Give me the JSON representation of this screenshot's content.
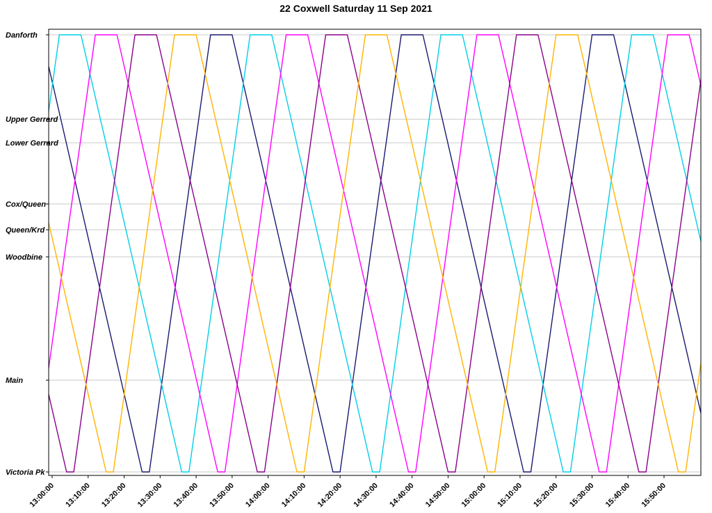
{
  "title": "22 Coxwell Saturday 11 Sep 2021",
  "chart_data": {
    "type": "line",
    "title": "22 Coxwell Saturday 11 Sep 2021",
    "subtitle": "",
    "legend": "none",
    "grid": "horizontal",
    "x_axis": {
      "unit": "time-of-day",
      "start_label": "13:00:00",
      "end_label": "15:50:00",
      "tick_interval_min": 10,
      "range_minutes_after_1300": [
        0,
        180
      ],
      "ticks": [
        {
          "t": 0,
          "label": "13:00:00"
        },
        {
          "t": 10,
          "label": "13:10:00"
        },
        {
          "t": 20,
          "label": "13:20:00"
        },
        {
          "t": 30,
          "label": "13:30:00"
        },
        {
          "t": 40,
          "label": "13:40:00"
        },
        {
          "t": 50,
          "label": "13:50:00"
        },
        {
          "t": 60,
          "label": "14:00:00"
        },
        {
          "t": 70,
          "label": "14:10:00"
        },
        {
          "t": 80,
          "label": "14:20:00"
        },
        {
          "t": 90,
          "label": "14:30:00"
        },
        {
          "t": 100,
          "label": "14:40:00"
        },
        {
          "t": 110,
          "label": "14:50:00"
        },
        {
          "t": 120,
          "label": "15:00:00"
        },
        {
          "t": 130,
          "label": "15:10:00"
        },
        {
          "t": 140,
          "label": "15:20:00"
        },
        {
          "t": 150,
          "label": "15:30:00"
        },
        {
          "t": 160,
          "label": "15:40:00"
        },
        {
          "t": 170,
          "label": "15:50:00"
        }
      ]
    },
    "y_axis": {
      "unit": "route-position (0 = Victoria Pk, 1 = Danforth)",
      "stations": [
        {
          "label": "Danforth",
          "position": 1.0
        },
        {
          "label": "Upper Gerrard",
          "position": 0.807
        },
        {
          "label": "Lower Gerrard",
          "position": 0.753
        },
        {
          "label": "Cox/Queen",
          "position": 0.613
        },
        {
          "label": "Queen/Krd",
          "position": 0.554
        },
        {
          "label": "Woodbine",
          "position": 0.492
        },
        {
          "label": "Main",
          "position": 0.21
        },
        {
          "label": "Victoria Pk",
          "position": 0.0
        }
      ]
    },
    "series": [
      {
        "name": "run-1-navy",
        "color": "#191970",
        "points": [
          [
            -26,
            0
          ],
          [
            -9,
            1
          ],
          [
            -3,
            1
          ],
          [
            25,
            0
          ],
          [
            27,
            0
          ],
          [
            44,
            1
          ],
          [
            50,
            1
          ],
          [
            78,
            0
          ],
          [
            80,
            0
          ],
          [
            97,
            1
          ],
          [
            103,
            1
          ],
          [
            131,
            0
          ],
          [
            133,
            0
          ],
          [
            150,
            1
          ],
          [
            156,
            1
          ],
          [
            184,
            0
          ]
        ]
      },
      {
        "name": "run-2-cyan",
        "color": "#00CFE8",
        "points": [
          [
            -15,
            0
          ],
          [
            2,
            1
          ],
          [
            8,
            1
          ],
          [
            36,
            0
          ],
          [
            38,
            0
          ],
          [
            55,
            1
          ],
          [
            61,
            1
          ],
          [
            89,
            0
          ],
          [
            91,
            0
          ],
          [
            108,
            1
          ],
          [
            114,
            1
          ],
          [
            142,
            0
          ],
          [
            144,
            0
          ],
          [
            161,
            1
          ],
          [
            167,
            1
          ],
          [
            195,
            0
          ]
        ]
      },
      {
        "name": "run-3-magenta",
        "color": "#FF00FF",
        "points": [
          [
            -5,
            0
          ],
          [
            12,
            1
          ],
          [
            18,
            1
          ],
          [
            46,
            0
          ],
          [
            48,
            0
          ],
          [
            65,
            1
          ],
          [
            71,
            1
          ],
          [
            99,
            0
          ],
          [
            101,
            0
          ],
          [
            118,
            1
          ],
          [
            124,
            1
          ],
          [
            152,
            0
          ],
          [
            154,
            0
          ],
          [
            171,
            1
          ],
          [
            177,
            1
          ],
          [
            205,
            0
          ]
        ]
      },
      {
        "name": "run-4-purple",
        "color": "#8B008B",
        "points": [
          [
            -47,
            0
          ],
          [
            -30,
            1
          ],
          [
            -24,
            1
          ],
          [
            4,
            0
          ],
          [
            6,
            0
          ],
          [
            23,
            1
          ],
          [
            29,
            1
          ],
          [
            57,
            0
          ],
          [
            59,
            0
          ],
          [
            76,
            1
          ],
          [
            82,
            1
          ],
          [
            110,
            0
          ],
          [
            112,
            0
          ],
          [
            129,
            1
          ],
          [
            135,
            1
          ],
          [
            163,
            0
          ],
          [
            165,
            0
          ],
          [
            182,
            1
          ]
        ]
      },
      {
        "name": "run-5-orange",
        "color": "#FFB300",
        "points": [
          [
            -36,
            0
          ],
          [
            -19,
            1
          ],
          [
            -13,
            1
          ],
          [
            15,
            0
          ],
          [
            17,
            0
          ],
          [
            34,
            1
          ],
          [
            40,
            1
          ],
          [
            68,
            0
          ],
          [
            70,
            0
          ],
          [
            87,
            1
          ],
          [
            93,
            1
          ],
          [
            121,
            0
          ],
          [
            123,
            0
          ],
          [
            140,
            1
          ],
          [
            146,
            1
          ],
          [
            174,
            0
          ],
          [
            176,
            0
          ],
          [
            193,
            1
          ]
        ]
      }
    ],
    "colors": {
      "grid": "#c9c9c9",
      "axis": "#000000",
      "background": "#ffffff"
    }
  }
}
